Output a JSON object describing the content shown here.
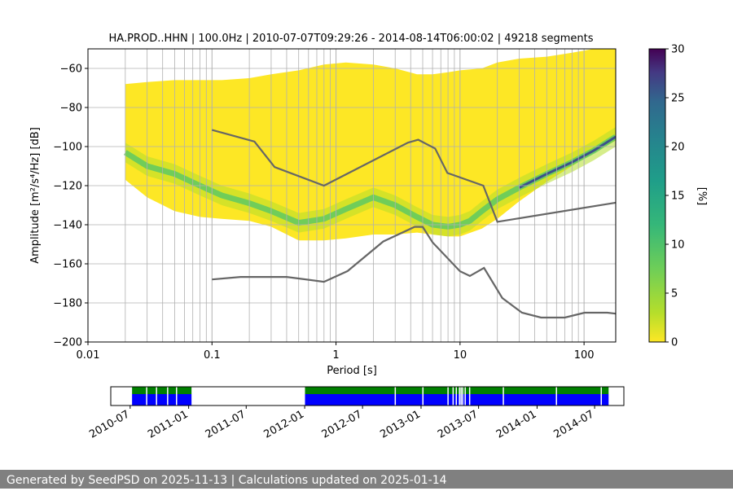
{
  "chart_data": {
    "type": "heatmap",
    "title": "HA.PROD..HHN | 100.0Hz | 2010-07-07T09:29:26 - 2014-08-14T06:00:02 | 49218 segments",
    "xlabel": "Period [s]",
    "ylabel": "Amplitude [m²/s⁴/Hz] [dB]",
    "xscale": "log",
    "xlim": [
      0.01,
      180
    ],
    "ylim": [
      -200,
      -50
    ],
    "xticks": [
      0.01,
      0.1,
      1,
      10,
      100
    ],
    "xticklabels": [
      "0.01",
      "0.1",
      "1",
      "10",
      "100"
    ],
    "yticks": [
      -200,
      -180,
      -160,
      -140,
      -120,
      -100,
      -80,
      -60
    ],
    "yticklabels": [
      "−200",
      "−180",
      "−160",
      "−140",
      "−120",
      "−100",
      "−80",
      "−60"
    ],
    "grid": true,
    "colorbar": {
      "label": "[%]",
      "range": [
        0,
        30
      ],
      "ticks": [
        0,
        5,
        10,
        15,
        20,
        25,
        30
      ],
      "ticklabels": [
        "0",
        "5",
        "10",
        "15",
        "20",
        "25",
        "30"
      ],
      "colormap": "viridis (reversed)"
    },
    "psd_mode": {
      "period": [
        0.02,
        0.03,
        0.05,
        0.08,
        0.12,
        0.2,
        0.3,
        0.5,
        0.8,
        1.2,
        2,
        3,
        4.5,
        6,
        8,
        10,
        12,
        15,
        20,
        30,
        50,
        80,
        120,
        180
      ],
      "db": [
        -103,
        -110,
        -114,
        -120,
        -125,
        -129,
        -133,
        -139,
        -137,
        -132,
        -126,
        -130,
        -136,
        -140,
        -141,
        -140,
        -138,
        -133,
        -127,
        -121,
        -114,
        -108,
        -102,
        -95
      ]
    },
    "psd_envelope": {
      "period": [
        0.02,
        0.03,
        0.05,
        0.08,
        0.12,
        0.2,
        0.3,
        0.5,
        0.8,
        1.2,
        2,
        3,
        4.5,
        6,
        8,
        10,
        15,
        20,
        30,
        50,
        80,
        120,
        180
      ],
      "upper_db": [
        -68,
        -67,
        -66,
        -66,
        -66,
        -65,
        -63,
        -61,
        -58,
        -57,
        -58,
        -60,
        -63,
        -63,
        -62,
        -61,
        -60,
        -57,
        -55,
        -54,
        -52,
        -50,
        -50
      ],
      "lower_db": [
        -117,
        -126,
        -133,
        -136,
        -137,
        -138,
        -141,
        -148,
        -148,
        -147,
        -145,
        -145,
        -144,
        -145,
        -146,
        -146,
        -142,
        -137,
        -128,
        -118,
        -110,
        -103,
        -97
      ]
    },
    "noise_models": [
      {
        "period": [
          0.1,
          0.22,
          0.32,
          0.8,
          3.8,
          4.6,
          6.3,
          7.9,
          15.4,
          20,
          180
        ],
        "db": [
          -91.5,
          -97.4,
          -110.5,
          -120,
          -98,
          -96.5,
          -101,
          -113.5,
          -120,
          -138.5,
          -128.7
        ]
      },
      {
        "period": [
          0.1,
          0.17,
          0.4,
          0.8,
          1.24,
          2.4,
          4.3,
          5,
          6,
          10,
          12,
          15.6,
          21.9,
          31.6,
          45,
          70,
          101,
          154,
          180
        ],
        "db": [
          -168,
          -166.7,
          -166.7,
          -169.2,
          -163.7,
          -148.6,
          -141.1,
          -141.1,
          -149,
          -163.8,
          -166.2,
          -162.1,
          -177.5,
          -185,
          -187.5,
          -187.5,
          -185,
          -185,
          -185.5
        ]
      }
    ],
    "availability": {
      "xticklabels": [
        "2010-07",
        "2011-01",
        "2011-07",
        "2012-01",
        "2012-07",
        "2013-01",
        "2013-07",
        "2014-01",
        "2014-07"
      ],
      "xtick_dates": [
        "2010-07-01",
        "2011-01-01",
        "2011-07-01",
        "2012-01-01",
        "2012-07-01",
        "2013-01-01",
        "2013-07-01",
        "2014-01-01",
        "2014-07-01"
      ],
      "range": [
        "2010-05-01",
        "2014-10-01"
      ],
      "data_periods": [
        [
          "2010-07-07",
          "2011-01-10"
        ],
        [
          "2012-01-02",
          "2014-08-14"
        ]
      ],
      "gaps": [
        "2010-08-20",
        "2010-09-20",
        "2010-10-25",
        "2010-11-22",
        "2012-10-10",
        "2013-01-05",
        "2013-03-25",
        "2013-04-10",
        "2013-04-20",
        "2013-04-30",
        "2013-05-05",
        "2013-05-10",
        "2013-05-18",
        "2013-06-01",
        "2013-09-15",
        "2014-03-01",
        "2014-07-20"
      ],
      "colors": {
        "data": "#0000ff",
        "coverage": "#008000"
      }
    }
  },
  "footer": {
    "text": "Generated by SeedPSD on 2025-11-13 | Calculations updated on 2025-01-14"
  }
}
